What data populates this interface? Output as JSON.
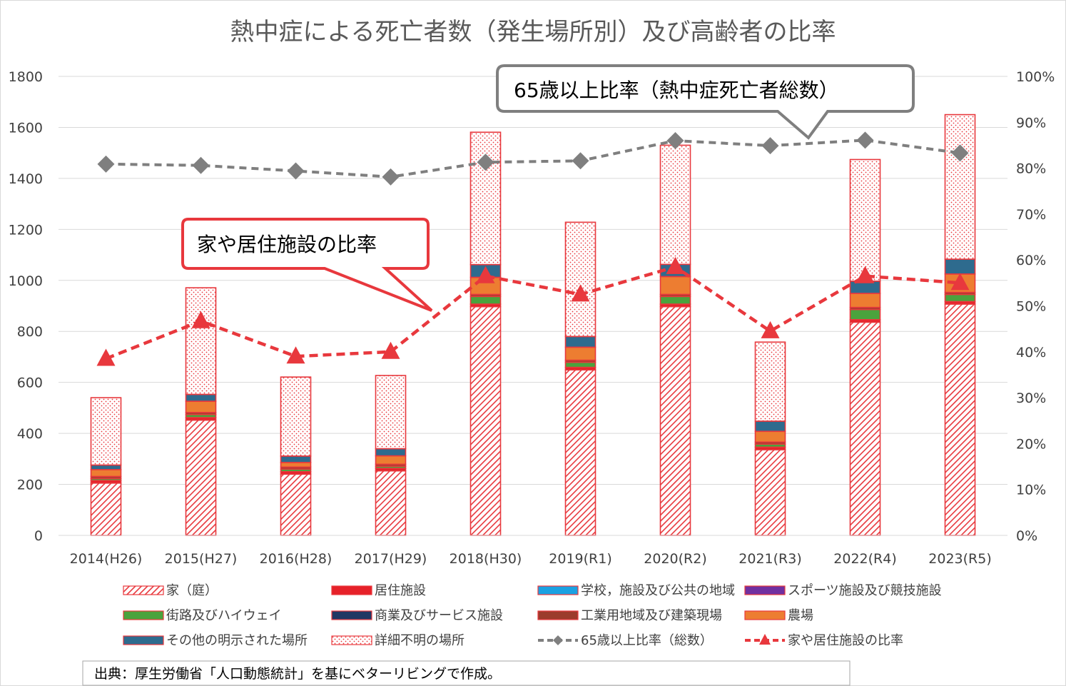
{
  "chart_data": {
    "type": "bar",
    "title": "熱中症による死亡者数（発生場所別）及び高齢者の比率",
    "categories": [
      "2014(H26)",
      "2015(H27)",
      "2016(H28)",
      "2017(H29)",
      "2018(H30)",
      "2019(R1)",
      "2020(R2)",
      "2021(R3)",
      "2022(R4)",
      "2023(R5)"
    ],
    "ylim": [
      0,
      1800
    ],
    "y_ticks": [
      "0",
      "200",
      "400",
      "600",
      "800",
      "1000",
      "1200",
      "1400",
      "1600",
      "1800"
    ],
    "y2lim": [
      0,
      100
    ],
    "y2_ticks": [
      "0%",
      "10%",
      "20%",
      "30%",
      "40%",
      "50%",
      "60%",
      "70%",
      "80%",
      "90%",
      "100%"
    ],
    "stacked": true,
    "series": [
      {
        "name": "家（庭）",
        "axis": "left",
        "color": "#e8383d",
        "pattern": "hatch",
        "values": [
          205,
          452,
          240,
          253,
          897,
          649,
          897,
          336,
          836,
          907
        ]
      },
      {
        "name": "居住施設",
        "axis": "left",
        "color": "#e62129",
        "values": [
          10,
          10,
          10,
          10,
          10,
          10,
          10,
          10,
          10,
          10
        ]
      },
      {
        "name": "学校，施設及び公共の地域",
        "axis": "left",
        "color": "#1ba1e2",
        "values": [
          0,
          0,
          0,
          0,
          0,
          0,
          0,
          0,
          0,
          0
        ]
      },
      {
        "name": "スポーツ施設及び競技施設",
        "axis": "left",
        "color": "#7030a0",
        "values": [
          0,
          0,
          0,
          0,
          0,
          0,
          0,
          0,
          0,
          0
        ]
      },
      {
        "name": "街路及びハイウェイ",
        "axis": "left",
        "color": "#4aa33d",
        "values": [
          8,
          12,
          10,
          8,
          30,
          20,
          30,
          12,
          40,
          28
        ]
      },
      {
        "name": "商業及びサービス施設",
        "axis": "left",
        "color": "#203864",
        "values": [
          0,
          0,
          0,
          0,
          0,
          0,
          0,
          0,
          0,
          0
        ]
      },
      {
        "name": "工業用地域及び建築現場",
        "axis": "left",
        "color": "#9c3c2c",
        "values": [
          8,
          8,
          8,
          8,
          8,
          8,
          8,
          8,
          8,
          8
        ]
      },
      {
        "name": "農場",
        "axis": "left",
        "color": "#ed7d31",
        "values": [
          27,
          44,
          18,
          33,
          67,
          51,
          70,
          42,
          55,
          72
        ]
      },
      {
        "name": "その他の明示された場所",
        "axis": "left",
        "color": "#2e6b8e",
        "values": [
          18,
          27,
          25,
          28,
          50,
          42,
          48,
          40,
          48,
          58
        ]
      },
      {
        "name": "詳細不明の場所",
        "axis": "left",
        "color": "#e8383d",
        "pattern": "dots",
        "values": [
          264,
          418,
          310,
          287,
          519,
          448,
          467,
          310,
          477,
          567
        ]
      },
      {
        "name": "65歳以上比率（総数）",
        "axis": "right",
        "type": "line",
        "color": "#7f7f7f",
        "values": [
          80.9,
          80.6,
          79.4,
          78.1,
          81.3,
          81.6,
          86.0,
          84.9,
          86.1,
          83.3
        ]
      },
      {
        "name": "家や居住施設の比率",
        "axis": "right",
        "type": "line",
        "color": "#e8383d",
        "values": [
          38.5,
          46.7,
          39.0,
          40.0,
          56.5,
          52.5,
          58.5,
          44.5,
          56.5,
          55.0
        ]
      }
    ],
    "annotations": [
      "65歳以上比率（熱中症死亡者総数）",
      "家や居住施設の比率"
    ],
    "legend_position": "bottom",
    "grid": true
  },
  "source_note": "出典：厚生労働省「人口動態統計」を基にベターリビングで作成。"
}
